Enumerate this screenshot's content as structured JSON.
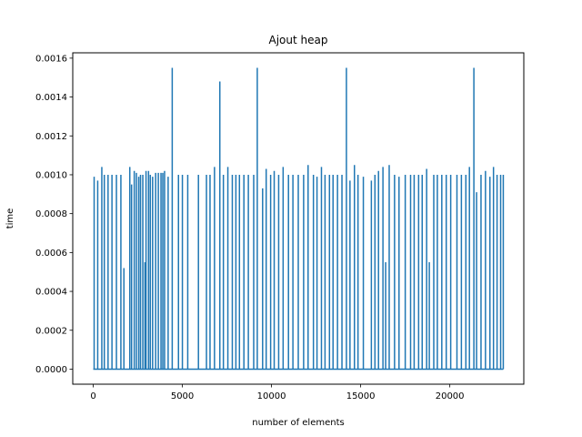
{
  "chart_data": {
    "type": "line",
    "title": "Ajout heap",
    "xlabel": "number of elements",
    "ylabel": "time",
    "xlim": [
      -1150,
      24150
    ],
    "ylim": [
      -7.75e-05,
      0.0016275
    ],
    "xticks": [
      0,
      5000,
      10000,
      15000,
      20000
    ],
    "xtick_labels": [
      "0",
      "5000",
      "10000",
      "15000",
      "20000"
    ],
    "yticks": [
      0,
      0.0002,
      0.0004,
      0.0006,
      0.0008,
      0.001,
      0.0012,
      0.0014,
      0.0016
    ],
    "ytick_labels": [
      "0.0000",
      "0.0002",
      "0.0004",
      "0.0006",
      "0.0008",
      "0.0010",
      "0.0012",
      "0.0014",
      "0.0016"
    ],
    "grid": false,
    "color": "#1f77b4",
    "baseline": 0,
    "x_end": 23000,
    "spikes": [
      [
        50,
        0.00099
      ],
      [
        250,
        0.00097
      ],
      [
        480,
        0.00104
      ],
      [
        620,
        0.001
      ],
      [
        830,
        0.001
      ],
      [
        1050,
        0.001
      ],
      [
        1300,
        0.001
      ],
      [
        1550,
        0.001
      ],
      [
        1720,
        0.00052
      ],
      [
        2050,
        0.00104
      ],
      [
        2150,
        0.00095
      ],
      [
        2300,
        0.00102
      ],
      [
        2420,
        0.00101
      ],
      [
        2550,
        0.00099
      ],
      [
        2650,
        0.001
      ],
      [
        2780,
        0.001
      ],
      [
        2900,
        0.00055
      ],
      [
        2960,
        0.00102
      ],
      [
        3100,
        0.00102
      ],
      [
        3200,
        0.001
      ],
      [
        3330,
        0.00099
      ],
      [
        3500,
        0.00101
      ],
      [
        3650,
        0.00101
      ],
      [
        3800,
        0.00101
      ],
      [
        3900,
        0.00101
      ],
      [
        4000,
        0.00102
      ],
      [
        4200,
        0.00099
      ],
      [
        4430,
        0.00155
      ],
      [
        4780,
        0.001
      ],
      [
        5000,
        0.001
      ],
      [
        5300,
        0.001
      ],
      [
        5900,
        0.001
      ],
      [
        6350,
        0.001
      ],
      [
        6550,
        0.001
      ],
      [
        6800,
        0.00104
      ],
      [
        7100,
        0.00148
      ],
      [
        7300,
        0.001
      ],
      [
        7550,
        0.00104
      ],
      [
        7800,
        0.001
      ],
      [
        8000,
        0.001
      ],
      [
        8200,
        0.001
      ],
      [
        8450,
        0.001
      ],
      [
        8700,
        0.001
      ],
      [
        9000,
        0.001
      ],
      [
        9200,
        0.00155
      ],
      [
        9500,
        0.00093
      ],
      [
        9700,
        0.00103
      ],
      [
        9950,
        0.001
      ],
      [
        10150,
        0.00102
      ],
      [
        10400,
        0.001
      ],
      [
        10650,
        0.00104
      ],
      [
        10950,
        0.001
      ],
      [
        11200,
        0.001
      ],
      [
        11500,
        0.001
      ],
      [
        11800,
        0.001
      ],
      [
        12050,
        0.00105
      ],
      [
        12350,
        0.001
      ],
      [
        12550,
        0.00099
      ],
      [
        12800,
        0.00104
      ],
      [
        13000,
        0.001
      ],
      [
        13250,
        0.001
      ],
      [
        13450,
        0.001
      ],
      [
        13700,
        0.001
      ],
      [
        13950,
        0.001
      ],
      [
        14200,
        0.00155
      ],
      [
        14400,
        0.00097
      ],
      [
        14650,
        0.00105
      ],
      [
        14850,
        0.001
      ],
      [
        15150,
        0.00099
      ],
      [
        15600,
        0.00097
      ],
      [
        15800,
        0.001
      ],
      [
        16000,
        0.00102
      ],
      [
        16250,
        0.00104
      ],
      [
        16400,
        0.00055
      ],
      [
        16600,
        0.00105
      ],
      [
        16900,
        0.001
      ],
      [
        17150,
        0.00099
      ],
      [
        17500,
        0.001
      ],
      [
        17800,
        0.001
      ],
      [
        18000,
        0.001
      ],
      [
        18250,
        0.001
      ],
      [
        18450,
        0.001
      ],
      [
        18700,
        0.00103
      ],
      [
        18850,
        0.00055
      ],
      [
        19100,
        0.001
      ],
      [
        19300,
        0.001
      ],
      [
        19550,
        0.001
      ],
      [
        19800,
        0.001
      ],
      [
        20050,
        0.001
      ],
      [
        20400,
        0.001
      ],
      [
        20650,
        0.001
      ],
      [
        20900,
        0.001
      ],
      [
        21100,
        0.00104
      ],
      [
        21350,
        0.00155
      ],
      [
        21500,
        0.00091
      ],
      [
        21750,
        0.001
      ],
      [
        22000,
        0.00102
      ],
      [
        22250,
        0.00099
      ],
      [
        22450,
        0.00104
      ],
      [
        22650,
        0.001
      ],
      [
        22850,
        0.001
      ],
      [
        23000,
        0.001
      ]
    ]
  }
}
